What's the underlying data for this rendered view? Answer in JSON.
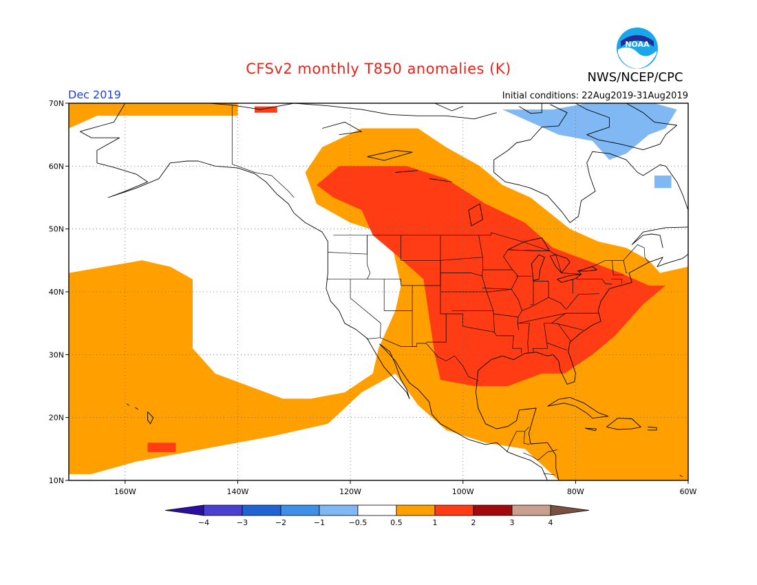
{
  "title": "CFSv2 monthly T850 anomalies (K)",
  "credit": "NWS/NCEP/CPC",
  "logo_text": "NOAA",
  "valid_month": "Dec 2019",
  "initial_conditions": "Initial conditions: 22Aug2019-31Aug2019",
  "map": {
    "lat_range": [
      10,
      70
    ],
    "lon_range": [
      -170,
      -60
    ],
    "lat_ticks": [
      {
        "value": 70,
        "label": "70N"
      },
      {
        "value": 60,
        "label": "60N"
      },
      {
        "value": 50,
        "label": "50N"
      },
      {
        "value": 40,
        "label": "40N"
      },
      {
        "value": 30,
        "label": "30N"
      },
      {
        "value": 20,
        "label": "20N"
      },
      {
        "value": 10,
        "label": "10N"
      }
    ],
    "lon_ticks": [
      {
        "value": -160,
        "label": "160W"
      },
      {
        "value": -140,
        "label": "140W"
      },
      {
        "value": -120,
        "label": "120W"
      },
      {
        "value": -100,
        "label": "100W"
      },
      {
        "value": -80,
        "label": "80W"
      },
      {
        "value": -60,
        "label": "60W"
      }
    ],
    "grid": "dotted"
  },
  "colorbar": {
    "bins": [
      {
        "color": "#2a0fa0"
      },
      {
        "color": "#4b3fd1"
      },
      {
        "color": "#1f64d2"
      },
      {
        "color": "#3f8ee8"
      },
      {
        "color": "#7fb8f2"
      },
      {
        "color": "#ffffff"
      },
      {
        "color": "#ff9f00"
      },
      {
        "color": "#ff3c14"
      },
      {
        "color": "#a00a0a"
      },
      {
        "color": "#c8a090"
      },
      {
        "color": "#7a5040"
      }
    ],
    "labels": [
      "−4",
      "−3",
      "−2",
      "−1",
      "−0.5",
      "0.5",
      "1",
      "2",
      "3",
      "4"
    ]
  },
  "anomaly_regions": [
    {
      "category": "0.5 to 1",
      "color": "#ff9f00",
      "lonlat": [
        [
          -170,
          43
        ],
        [
          -157,
          45
        ],
        [
          -152,
          44
        ],
        [
          -148,
          42
        ],
        [
          -148,
          31
        ],
        [
          -144,
          27
        ],
        [
          -138,
          25
        ],
        [
          -132,
          23
        ],
        [
          -127,
          23
        ],
        [
          -121,
          24
        ],
        [
          -116,
          27
        ],
        [
          -115,
          31
        ],
        [
          -112,
          37
        ],
        [
          -111,
          41
        ],
        [
          -113,
          49
        ],
        [
          -120,
          51
        ],
        [
          -126,
          54
        ],
        [
          -128,
          59
        ],
        [
          -125,
          63
        ],
        [
          -118,
          66
        ],
        [
          -108,
          66
        ],
        [
          -103,
          63
        ],
        [
          -97,
          60
        ],
        [
          -93,
          57
        ],
        [
          -88,
          55
        ],
        [
          -81,
          50
        ],
        [
          -76,
          48
        ],
        [
          -71,
          47
        ],
        [
          -67,
          45
        ],
        [
          -65,
          43
        ],
        [
          -60,
          44
        ],
        [
          -60,
          10
        ],
        [
          -83,
          10
        ],
        [
          -89,
          15
        ],
        [
          -96,
          16
        ],
        [
          -103,
          18
        ],
        [
          -108,
          22
        ],
        [
          -112,
          27
        ],
        [
          -118,
          24
        ],
        [
          -124,
          19
        ],
        [
          -134,
          17
        ],
        [
          -146,
          15
        ],
        [
          -158,
          13
        ],
        [
          -166,
          11
        ],
        [
          -170,
          11
        ]
      ]
    },
    {
      "category": "0.5 to 1",
      "color": "#ff9f00",
      "lonlat": [
        [
          -170,
          70
        ],
        [
          -140,
          70
        ],
        [
          -140,
          68
        ],
        [
          -165,
          68
        ],
        [
          -170,
          66
        ]
      ]
    },
    {
      "category": "1 to 2",
      "color": "#ff3c14",
      "lonlat": [
        [
          -126,
          57
        ],
        [
          -122,
          60
        ],
        [
          -110,
          60
        ],
        [
          -103,
          58
        ],
        [
          -96,
          54
        ],
        [
          -89,
          51
        ],
        [
          -84,
          47
        ],
        [
          -78,
          45
        ],
        [
          -72,
          43
        ],
        [
          -67,
          41
        ],
        [
          -64,
          41
        ],
        [
          -68,
          38
        ],
        [
          -73,
          33
        ],
        [
          -77,
          30
        ],
        [
          -82,
          27
        ],
        [
          -86,
          27
        ],
        [
          -92,
          25
        ],
        [
          -98,
          25
        ],
        [
          -104,
          26
        ],
        [
          -105,
          30
        ],
        [
          -106,
          36
        ],
        [
          -107,
          42
        ],
        [
          -112,
          46
        ],
        [
          -116,
          49
        ],
        [
          -118,
          53
        ],
        [
          -123,
          55
        ]
      ]
    },
    {
      "category": "1 to 2",
      "color": "#ff3c14",
      "lonlat": [
        [
          -156,
          16
        ],
        [
          -151,
          16
        ],
        [
          -151,
          14.5
        ],
        [
          -156,
          14.5
        ]
      ]
    },
    {
      "category": "1 to 2",
      "color": "#ff3c14",
      "lonlat": [
        [
          -137,
          69.5
        ],
        [
          -133,
          69.5
        ],
        [
          -133,
          68.5
        ],
        [
          -137,
          68.5
        ]
      ]
    },
    {
      "category": "-0.5 to -1",
      "color": "#7fb8f2",
      "lonlat": [
        [
          -93,
          69
        ],
        [
          -84,
          69
        ],
        [
          -78,
          70
        ],
        [
          -66,
          70
        ],
        [
          -62,
          69
        ],
        [
          -64,
          66
        ],
        [
          -67,
          65
        ],
        [
          -71,
          62
        ],
        [
          -74,
          61
        ],
        [
          -77,
          64
        ],
        [
          -83,
          65
        ],
        [
          -88,
          67
        ]
      ]
    },
    {
      "category": "-0.5 to -1",
      "color": "#7fb8f2",
      "lonlat": [
        [
          -66,
          58.5
        ],
        [
          -63,
          58.5
        ],
        [
          -63,
          56.5
        ],
        [
          -66,
          56.5
        ]
      ]
    }
  ]
}
